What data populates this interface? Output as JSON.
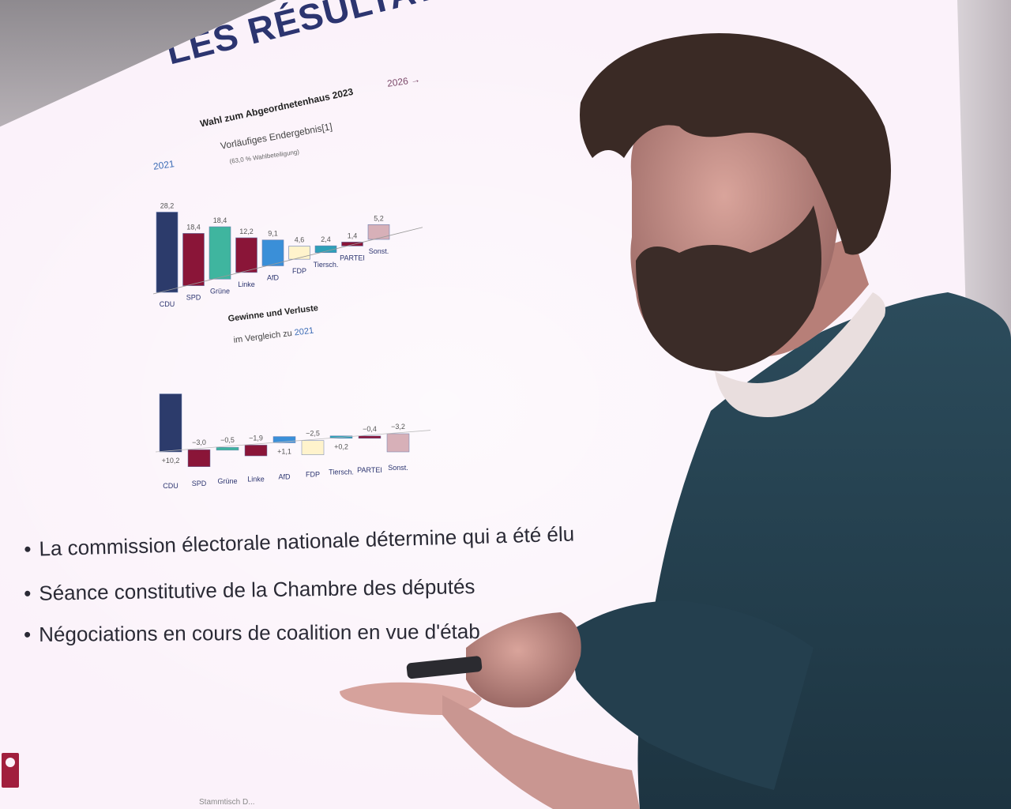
{
  "slide": {
    "title": "LES RÉSULTATS",
    "year_left": "2021",
    "year_right": "2026 →",
    "footer": "Stammtisch D..."
  },
  "chart1": {
    "title": "Wahl zum Abgeordnetenhaus 2023",
    "subtitle": "Vorläufiges Endergebnis[1]",
    "subtitle2": "(63,0 % Wahlbeteiligung)"
  },
  "chart2": {
    "title": "Gewinne und Verluste",
    "subtitle_prefix": "im Vergleich zu ",
    "subtitle_year": "2021"
  },
  "chart_data": [
    {
      "type": "bar",
      "title": "Wahl zum Abgeordnetenhaus 2023",
      "categories": [
        "CDU",
        "SPD",
        "Grüne",
        "Linke",
        "AfD",
        "FDP",
        "Tiersch.",
        "PARTEI",
        "Sonst."
      ],
      "values": [
        28.2,
        18.4,
        18.4,
        12.2,
        9.1,
        4.6,
        2.4,
        1.4,
        5.2
      ],
      "value_labels": [
        "28,2",
        "18,4",
        "18,4",
        "12,2",
        "9,1",
        "4,6",
        "2,4",
        "1,4",
        "5,2"
      ],
      "colors": [
        "#2c3b6b",
        "#8a1538",
        "#3fb59f",
        "#8a1538",
        "#3a8fd8",
        "#fff3cc",
        "#2ea0b8",
        "#8a1538",
        "#d7b0b8"
      ]
    },
    {
      "type": "bar",
      "title": "Gewinne und Verluste",
      "categories": [
        "CDU",
        "SPD",
        "Grüne",
        "Linke",
        "AfD",
        "FDP",
        "Tiersch.",
        "PARTEI",
        "Sonst."
      ],
      "values": [
        10.2,
        -3.0,
        -0.5,
        -1.9,
        1.1,
        -2.5,
        0.2,
        -0.4,
        -3.2
      ],
      "value_labels": [
        "+10,2",
        "−3,0",
        "−0,5",
        "−1,9",
        "+1,1",
        "−2,5",
        "+0,2",
        "−0,4",
        "−3,2"
      ],
      "colors": [
        "#2c3b6b",
        "#8a1538",
        "#3fb59f",
        "#8a1538",
        "#3a8fd8",
        "#fff3cc",
        "#2ea0b8",
        "#8a1538",
        "#d7b0b8"
      ]
    }
  ],
  "bullets": [
    "La commission électorale nationale détermine qui a été élu",
    "Séance constitutive de la Chambre des députés",
    "Négociations en cours de coalition en vue d'étab"
  ]
}
